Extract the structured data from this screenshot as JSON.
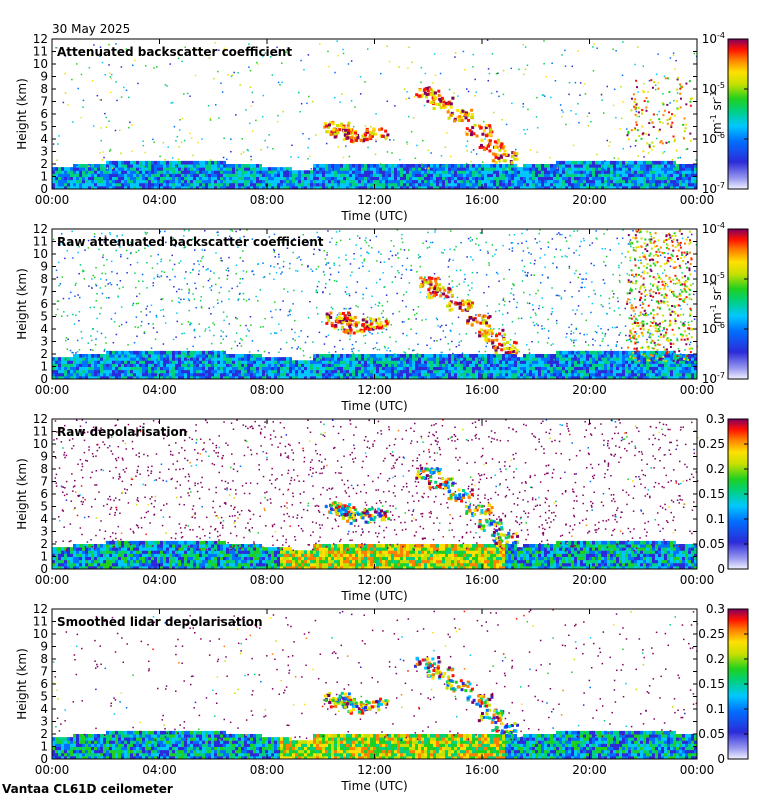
{
  "date_label": "30 May 2025",
  "footer": "Vantaa CL61D ceilometer",
  "chart_data": [
    {
      "type": "heatmap",
      "title": "Attenuated backscatter coefficient",
      "xlabel": "Time (UTC)",
      "ylabel": "Height (km)",
      "x_ticks": [
        "00:00",
        "04:00",
        "08:00",
        "12:00",
        "16:00",
        "20:00",
        "00:00"
      ],
      "y_ticks": [
        0,
        1,
        2,
        3,
        4,
        5,
        6,
        7,
        8,
        9,
        10,
        11,
        12
      ],
      "ylim": [
        0,
        12
      ],
      "colorbar": {
        "scale": "log",
        "ticks": [
          "10",
          "10",
          "10",
          "10"
        ],
        "exponents": [
          "-4",
          "-5",
          "-6",
          "-7"
        ],
        "unit_base": [
          "m",
          "sr"
        ],
        "unit_exp": [
          "-1",
          "-1"
        ]
      }
    },
    {
      "type": "heatmap",
      "title": "Raw attenuated backscatter coefficient",
      "xlabel": "Time (UTC)",
      "ylabel": "Height (km)",
      "x_ticks": [
        "00:00",
        "04:00",
        "08:00",
        "12:00",
        "16:00",
        "20:00",
        "00:00"
      ],
      "y_ticks": [
        0,
        1,
        2,
        3,
        4,
        5,
        6,
        7,
        8,
        9,
        10,
        11,
        12
      ],
      "ylim": [
        0,
        12
      ],
      "colorbar": {
        "scale": "log",
        "ticks": [
          "10",
          "10",
          "10",
          "10"
        ],
        "exponents": [
          "-4",
          "-5",
          "-6",
          "-7"
        ],
        "unit_base": [
          "m",
          "sr"
        ],
        "unit_exp": [
          "-1",
          "-1"
        ]
      }
    },
    {
      "type": "heatmap",
      "title": "Raw depolarisation",
      "xlabel": "Time (UTC)",
      "ylabel": "Height (km)",
      "x_ticks": [
        "00:00",
        "04:00",
        "08:00",
        "12:00",
        "16:00",
        "20:00",
        "00:00"
      ],
      "y_ticks": [
        0,
        1,
        2,
        3,
        4,
        5,
        6,
        7,
        8,
        9,
        10,
        11,
        12
      ],
      "ylim": [
        0,
        12
      ],
      "colorbar": {
        "scale": "linear",
        "ticks": [
          "0.3",
          "0.25",
          "0.2",
          "0.15",
          "0.1",
          "0.05",
          "0"
        ]
      }
    },
    {
      "type": "heatmap",
      "title": "Smoothed lidar depolarisation",
      "xlabel": "Time (UTC)",
      "ylabel": "Height (km)",
      "x_ticks": [
        "00:00",
        "04:00",
        "08:00",
        "12:00",
        "16:00",
        "20:00",
        "00:00"
      ],
      "y_ticks": [
        0,
        1,
        2,
        3,
        4,
        5,
        6,
        7,
        8,
        9,
        10,
        11,
        12
      ],
      "ylim": [
        0,
        12
      ],
      "colorbar": {
        "scale": "linear",
        "ticks": [
          "0.3",
          "0.25",
          "0.2",
          "0.15",
          "0.1",
          "0.05",
          "0"
        ]
      }
    }
  ]
}
